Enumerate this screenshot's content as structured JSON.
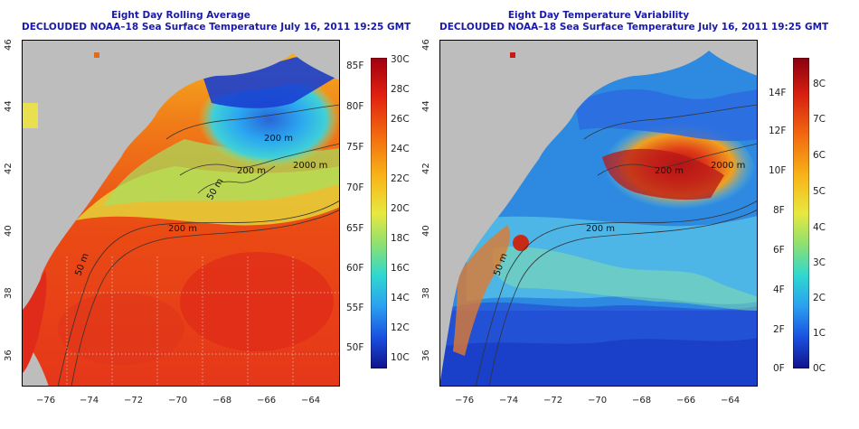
{
  "left_panel": {
    "title": "Eight Day Rolling Average",
    "subtitle": "DECLOUDED NOAA–18 Sea Surface Temperature July 16, 2011 19:25 GMT",
    "x_ticks": [
      "−76",
      "−74",
      "−72",
      "−70",
      "−68",
      "−66",
      "−64"
    ],
    "y_ticks": [
      "36",
      "38",
      "40",
      "42",
      "44",
      "46"
    ],
    "contour_labels": [
      "50 m",
      "200 m",
      "200 m",
      "2000 m",
      "200 m",
      "50 m"
    ],
    "colorbar_left_labels": [
      "85F",
      "80F",
      "75F",
      "70F",
      "65F",
      "60F",
      "55F",
      "50F"
    ],
    "colorbar_right_labels": [
      "30C",
      "28C",
      "26C",
      "24C",
      "22C",
      "20C",
      "18C",
      "16C",
      "14C",
      "12C",
      "10C"
    ]
  },
  "right_panel": {
    "title": "Eight Day Temperature Variability",
    "subtitle": "DECLOUDED NOAA–18 Sea Surface Temperature July 16, 2011 19:25 GMT",
    "x_ticks": [
      "−76",
      "−74",
      "−72",
      "−70",
      "−68",
      "−66",
      "−64"
    ],
    "y_ticks": [
      "36",
      "38",
      "40",
      "42",
      "44",
      "46"
    ],
    "contour_labels": [
      "50 m",
      "200 m",
      "2000 m",
      "200 m"
    ],
    "colorbar_left_labels": [
      "14F",
      "12F",
      "10F",
      "8F",
      "6F",
      "4F",
      "2F",
      "0F"
    ],
    "colorbar_right_labels": [
      "8C",
      "7C",
      "6C",
      "5C",
      "4C",
      "3C",
      "2C",
      "1C",
      "0C"
    ]
  },
  "colors": {
    "title": "#1a1aa8",
    "land": "#bdbdbd",
    "contour": "#333333"
  }
}
